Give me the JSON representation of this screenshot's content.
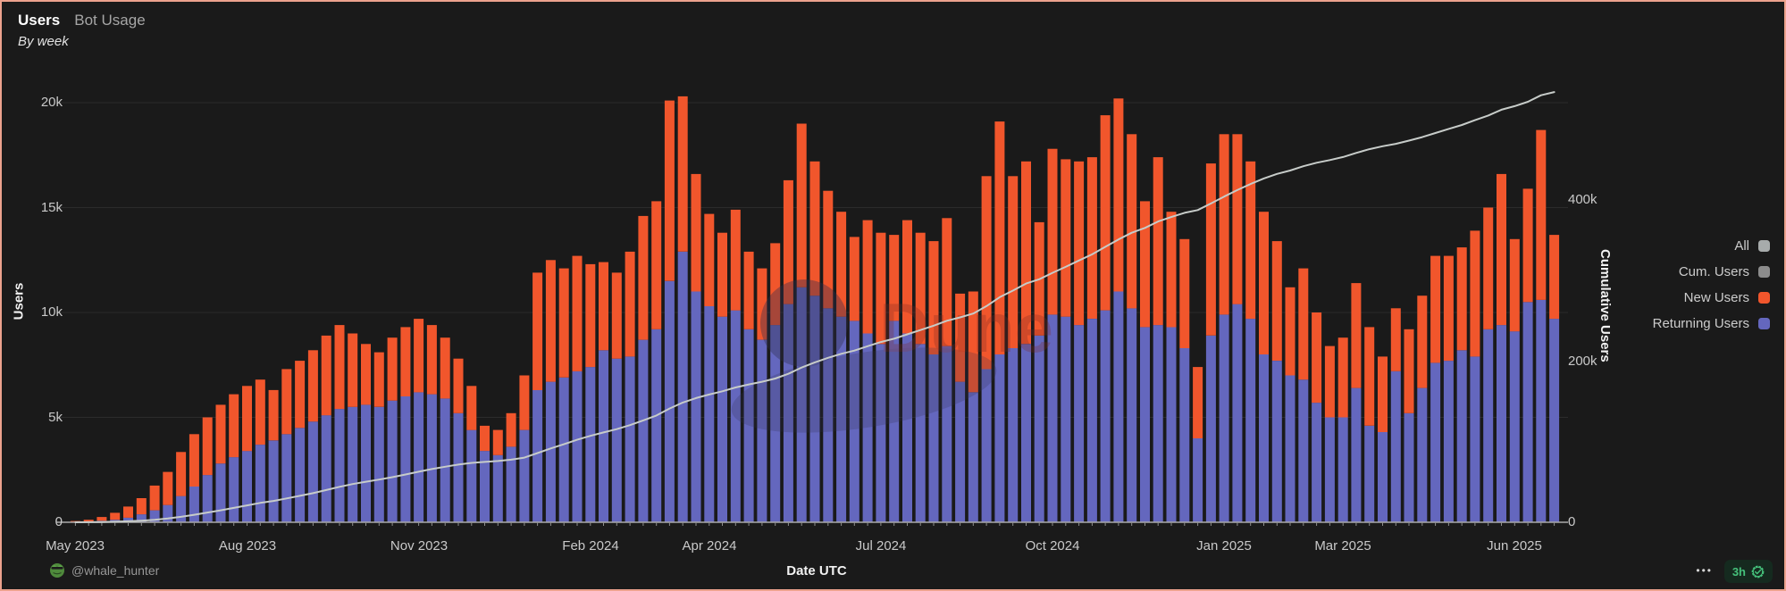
{
  "header": {
    "tabs": [
      {
        "label": "Users",
        "active": true
      },
      {
        "label": "Bot Usage",
        "active": false
      }
    ],
    "subtitle": "By week"
  },
  "legend": {
    "items": [
      {
        "label": "All",
        "color": "#a7abab"
      },
      {
        "label": "Cum. Users",
        "color": "#8c8c8c"
      },
      {
        "label": "New Users",
        "color": "#f1562c"
      },
      {
        "label": "Returning Users",
        "color": "#6467be"
      }
    ]
  },
  "footer": {
    "author": "@whale_hunter",
    "menu": "•••",
    "refresh_age": "3h"
  },
  "watermark": {
    "text": "Dune"
  },
  "colors": {
    "background": "#1a1a1a",
    "border": "#eca28d",
    "new_users": "#f1562c",
    "returning_users": "#6467be",
    "cum_line": "#c7ccc9",
    "grid": "rgba(255,255,255,0.08)",
    "baseline": "#a9a9a9",
    "tick_text": "#c9c9c9",
    "pill_bg": "#152a1f",
    "pill_text": "#45c17b"
  },
  "chart_data": {
    "type": "bar",
    "subtype": "stacked-bars-with-cumulative-line",
    "title": "Users — By week",
    "xlabel": "Date UTC",
    "ylabel_left": "Users",
    "ylabel_right": "Cumulative Users",
    "ylim_left": [
      0,
      21600
    ],
    "ylim_right": [
      0,
      563000
    ],
    "grid": "horizontal-left-axis-only",
    "legend_position": "right",
    "y_left_ticks": [
      {
        "v": 0,
        "label": "0"
      },
      {
        "v": 5000,
        "label": "5k"
      },
      {
        "v": 10000,
        "label": "10k"
      },
      {
        "v": 15000,
        "label": "15k"
      },
      {
        "v": 20000,
        "label": "20k"
      }
    ],
    "y_right_ticks": [
      {
        "v": 0,
        "label": "0"
      },
      {
        "v": 200000,
        "label": "200k"
      },
      {
        "v": 400000,
        "label": "400k"
      }
    ],
    "x_tick_indices": [
      0,
      13,
      26,
      39,
      48,
      61,
      74,
      87,
      96,
      109
    ],
    "x_tick_labels": [
      "May 2023",
      "Aug 2023",
      "Nov 2023",
      "Feb 2024",
      "Apr 2024",
      "Jul 2024",
      "Oct 2024",
      "Jan 2025",
      "Mar 2025",
      "Jun 2025"
    ],
    "weeks": [
      "2023-05-01",
      "2023-05-08",
      "2023-05-15",
      "2023-05-22",
      "2023-05-29",
      "2023-06-05",
      "2023-06-12",
      "2023-06-19",
      "2023-06-26",
      "2023-07-03",
      "2023-07-10",
      "2023-07-17",
      "2023-07-24",
      "2023-07-31",
      "2023-08-07",
      "2023-08-14",
      "2023-08-21",
      "2023-08-28",
      "2023-09-04",
      "2023-09-11",
      "2023-09-18",
      "2023-09-25",
      "2023-10-02",
      "2023-10-09",
      "2023-10-16",
      "2023-10-23",
      "2023-10-30",
      "2023-11-06",
      "2023-11-13",
      "2023-11-20",
      "2023-11-27",
      "2023-12-04",
      "2023-12-11",
      "2023-12-18",
      "2023-12-25",
      "2024-01-01",
      "2024-01-08",
      "2024-01-15",
      "2024-01-22",
      "2024-01-29",
      "2024-02-05",
      "2024-02-12",
      "2024-02-19",
      "2024-02-26",
      "2024-03-04",
      "2024-03-11",
      "2024-03-18",
      "2024-03-25",
      "2024-04-01",
      "2024-04-08",
      "2024-04-15",
      "2024-04-22",
      "2024-04-29",
      "2024-05-06",
      "2024-05-13",
      "2024-05-20",
      "2024-05-27",
      "2024-06-03",
      "2024-06-10",
      "2024-06-17",
      "2024-06-24",
      "2024-07-01",
      "2024-07-08",
      "2024-07-15",
      "2024-07-22",
      "2024-07-29",
      "2024-08-05",
      "2024-08-12",
      "2024-08-19",
      "2024-08-26",
      "2024-09-02",
      "2024-09-09",
      "2024-09-16",
      "2024-09-23",
      "2024-09-30",
      "2024-10-07",
      "2024-10-14",
      "2024-10-21",
      "2024-10-28",
      "2024-11-04",
      "2024-11-11",
      "2024-11-18",
      "2024-11-25",
      "2024-12-02",
      "2024-12-09",
      "2024-12-16",
      "2024-12-23",
      "2024-12-30",
      "2025-01-06",
      "2025-01-13",
      "2025-01-20",
      "2025-01-27",
      "2025-02-03",
      "2025-02-10",
      "2025-02-17",
      "2025-02-24",
      "2025-03-03",
      "2025-03-10",
      "2025-03-17",
      "2025-03-24",
      "2025-03-31",
      "2025-04-07",
      "2025-04-14",
      "2025-04-21",
      "2025-04-28",
      "2025-05-05",
      "2025-05-12",
      "2025-05-19",
      "2025-05-26",
      "2025-06-02",
      "2025-06-09",
      "2025-06-16",
      "2025-06-23"
    ],
    "series": [
      {
        "name": "Returning Users",
        "type": "bar",
        "stack_order": 0,
        "color": "#6467be",
        "axis": "left",
        "values": [
          15,
          35,
          70,
          120,
          220,
          380,
          570,
          820,
          1250,
          1700,
          2250,
          2800,
          3100,
          3400,
          3700,
          3900,
          4200,
          4500,
          4800,
          5100,
          5400,
          5500,
          5600,
          5500,
          5800,
          6000,
          6200,
          6100,
          5900,
          5200,
          4400,
          3400,
          3200,
          3600,
          4400,
          6300,
          6700,
          6900,
          7200,
          7400,
          8200,
          7800,
          7900,
          8700,
          9200,
          11500,
          12900,
          11000,
          10300,
          9800,
          10100,
          9200,
          8700,
          9400,
          10400,
          11200,
          10800,
          10200,
          9800,
          9600,
          9000,
          8500,
          9600,
          9000,
          8500,
          8000,
          8400,
          6700,
          6200,
          7300,
          8000,
          8300,
          8500,
          8900,
          9900,
          9800,
          9400,
          9700,
          10100,
          11000,
          10200,
          9300,
          9400,
          9300,
          8300,
          4000,
          8900,
          9900,
          10400,
          9700,
          8000,
          7700,
          7000,
          6800,
          5700,
          5000,
          5000,
          6400,
          4600,
          4300,
          7200,
          5200,
          6400,
          7600,
          7700,
          8200,
          7900,
          9200,
          9400,
          9100,
          10500,
          10600,
          9700
        ]
      },
      {
        "name": "New Users",
        "type": "bar",
        "stack_order": 1,
        "color": "#f1562c",
        "axis": "left",
        "values": [
          45,
          85,
          180,
          330,
          530,
          770,
          1180,
          1580,
          2100,
          2500,
          2750,
          2800,
          3000,
          3100,
          3100,
          2400,
          3100,
          3200,
          3400,
          3800,
          4000,
          3500,
          2900,
          2600,
          3000,
          3300,
          3500,
          3300,
          2900,
          2600,
          2100,
          1200,
          1200,
          1600,
          2600,
          5600,
          5800,
          5200,
          5500,
          4900,
          4200,
          4100,
          5000,
          5900,
          6100,
          8600,
          7400,
          5600,
          4400,
          4000,
          4800,
          3700,
          3400,
          3900,
          5900,
          7800,
          6400,
          5600,
          5000,
          4000,
          5400,
          5300,
          4100,
          5400,
          5300,
          5400,
          6100,
          4200,
          4800,
          9200,
          11100,
          8200,
          8700,
          5400,
          7900,
          7500,
          7800,
          7700,
          9300,
          9200,
          8300,
          6000,
          8000,
          5500,
          5200,
          3400,
          8200,
          8600,
          8100,
          7500,
          6800,
          5700,
          4200,
          5300,
          4300,
          3400,
          3800,
          5000,
          4700,
          3600,
          3000,
          4000,
          4400,
          5100,
          5000,
          4900,
          6000,
          5800,
          7200,
          4400,
          5400,
          8100,
          4000
        ]
      },
      {
        "name": "Cum. Users",
        "type": "line",
        "color": "#c7ccc9",
        "axis": "right",
        "values": [
          45,
          130,
          310,
          640,
          1170,
          1940,
          3120,
          4700,
          6800,
          9300,
          12050,
          14850,
          17850,
          20950,
          24050,
          26450,
          29550,
          32750,
          36150,
          39950,
          43950,
          47450,
          50350,
          52950,
          55950,
          59250,
          62750,
          66050,
          68950,
          71550,
          73650,
          74850,
          76050,
          77650,
          80250,
          85850,
          91650,
          96850,
          102350,
          107250,
          111450,
          115550,
          120550,
          126450,
          132550,
          141150,
          148550,
          154150,
          158550,
          162550,
          167350,
          171050,
          174450,
          178350,
          184250,
          192050,
          198450,
          204050,
          209050,
          213050,
          218450,
          223750,
          227850,
          233250,
          238550,
          243950,
          250050,
          254250,
          259050,
          268250,
          279350,
          287550,
          296250,
          301650,
          309550,
          317050,
          324850,
          332550,
          341850,
          351050,
          359350,
          365350,
          373350,
          378850,
          384050,
          387450,
          395650,
          404250,
          412350,
          419850,
          426650,
          432350,
          436550,
          441850,
          446150,
          449550,
          453350,
          458350,
          463050,
          466650,
          469650,
          473650,
          478050,
          483150,
          488150,
          493050,
          499050,
          504850,
          512050,
          516450,
          521850,
          529950,
          533950
        ]
      }
    ]
  }
}
